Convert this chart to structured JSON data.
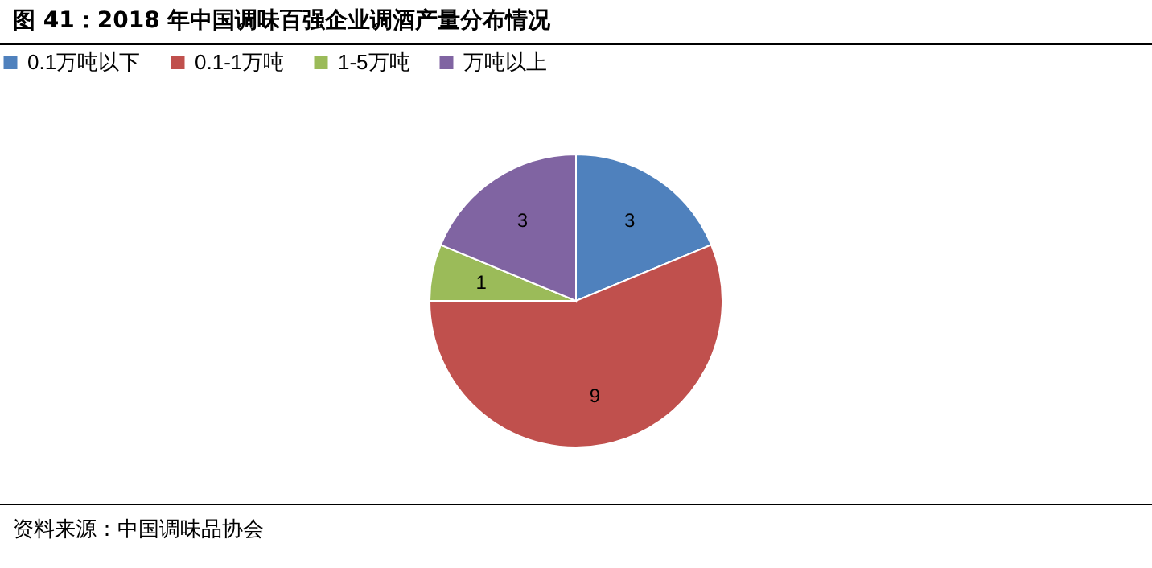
{
  "chart_data": {
    "type": "pie",
    "title": "图 41：2018 年中国调味百强企业调酒产量分布情况",
    "categories": [
      "0.1万吨以下",
      "0.1-1万吨",
      "1-5万吨",
      "万吨以上"
    ],
    "values": [
      3,
      9,
      1,
      3
    ],
    "colors": [
      "#4f81bd",
      "#c0504d",
      "#9bbb59",
      "#8064a2"
    ],
    "data_labels": true,
    "legend": "top",
    "annotations": [
      "资料来源：中国调味品协会"
    ]
  }
}
